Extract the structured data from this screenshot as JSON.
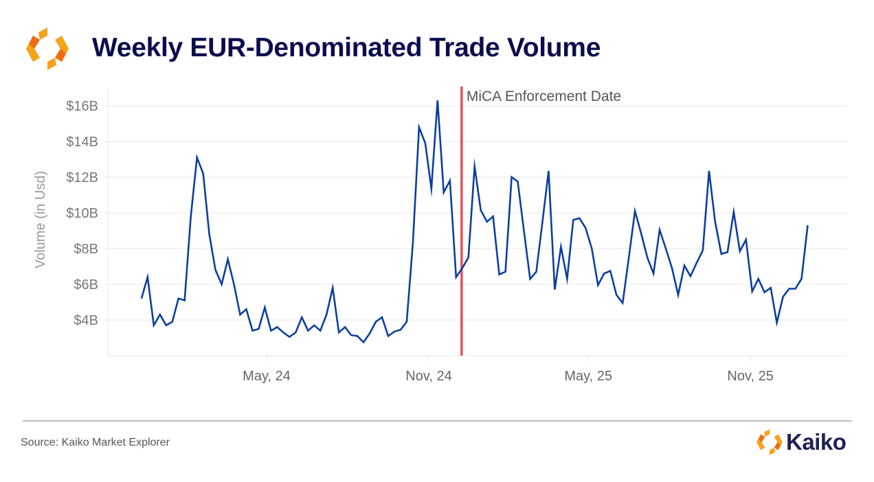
{
  "header": {
    "title": "Weekly EUR-Denominated Trade Volume",
    "logo_icon": "kaiko-logo-icon"
  },
  "footer": {
    "source": "Source: Kaiko Market Explorer",
    "brand_name": "Kaiko",
    "brand_icon": "kaiko-logo-icon"
  },
  "colors": {
    "line": "#0b3f9e",
    "annotation_line": "#e8505b",
    "title": "#0b0d4e",
    "logo_orange": "#f7a21b",
    "logo_dark_orange": "#ef6c12"
  },
  "chart_data": {
    "type": "line",
    "title": "Weekly EUR-Denominated Trade Volume",
    "xlabel": "",
    "ylabel": "Volume (in Usd)",
    "ylim": [
      2,
      17
    ],
    "yticks": [
      4,
      6,
      8,
      10,
      12,
      14,
      16
    ],
    "ytick_labels": [
      "$4B",
      "$6B",
      "$8B",
      "$10B",
      "$12B",
      "$14B",
      "$16B"
    ],
    "xticks": [
      "2024-05-01",
      "2024-11-01",
      "2025-05-01",
      "2025-11-01"
    ],
    "xtick_labels": [
      "May, 24",
      "Nov, 24",
      "May, 25",
      "Nov, 25"
    ],
    "grid": true,
    "legend": "none",
    "units": "USD billions",
    "annotation": {
      "label": "MiCA Enforcement Date",
      "x_index": 51.9
    },
    "series": [
      {
        "name": "Weekly EUR-denominated volume",
        "start_date": "2023-12-11",
        "interval_days": 7,
        "values": [
          5.2,
          6.4,
          3.7,
          4.3,
          3.7,
          3.9,
          5.2,
          5.1,
          9.8,
          13.1,
          12.2,
          8.8,
          6.8,
          6.0,
          7.4,
          6.0,
          4.3,
          4.6,
          3.4,
          3.5,
          4.7,
          3.4,
          3.6,
          3.3,
          3.05,
          3.3,
          4.15,
          3.4,
          3.7,
          3.4,
          4.3,
          5.8,
          3.3,
          3.6,
          3.15,
          3.1,
          2.75,
          3.25,
          3.9,
          4.15,
          3.1,
          3.35,
          3.45,
          3.9,
          8.3,
          14.8,
          13.9,
          11.35,
          16.3,
          11.15,
          11.8,
          6.4,
          6.9,
          7.5,
          12.6,
          10.15,
          9.5,
          9.8,
          6.55,
          6.7,
          12.0,
          11.75,
          9.0,
          6.3,
          6.7,
          9.5,
          12.35,
          5.7,
          8.1,
          6.3,
          9.6,
          9.7,
          9.15,
          8.0,
          5.95,
          6.6,
          6.75,
          5.4,
          4.95,
          7.5,
          10.1,
          8.85,
          7.5,
          6.6,
          9.05,
          8.0,
          6.9,
          5.4,
          7.05,
          6.45,
          7.2,
          7.9,
          12.35,
          9.5,
          7.7,
          7.8,
          10.05,
          7.85,
          8.5,
          5.6,
          6.3,
          5.55,
          5.8,
          3.85,
          5.3,
          5.75,
          5.75,
          6.3,
          9.3
        ]
      }
    ]
  }
}
